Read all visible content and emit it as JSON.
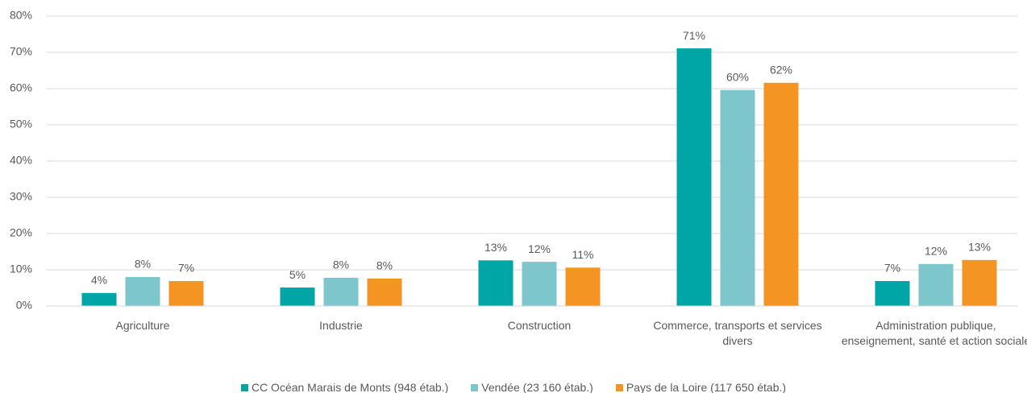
{
  "chart_data": {
    "type": "bar",
    "categories": [
      "Agriculture",
      "Industrie",
      "Construction",
      "Commerce, transports et services divers",
      "Administration publique, enseignement, santé et action sociale"
    ],
    "series": [
      {
        "name": "CC Océan Marais de Monts (948 étab.)",
        "color": "#00a6a6",
        "values": [
          3.6,
          5.1,
          12.6,
          71.1,
          6.9
        ],
        "value_labels": [
          "4%",
          "5%",
          "13%",
          "71%",
          "7%"
        ]
      },
      {
        "name": "Vendée (23 160 étab.)",
        "color": "#7cc6cc",
        "values": [
          8.0,
          7.8,
          12.2,
          59.6,
          11.6
        ],
        "value_labels": [
          "8%",
          "8%",
          "12%",
          "60%",
          "12%"
        ]
      },
      {
        "name": "Pays de la Loire (117 650 étab.)",
        "color": "#f39423",
        "values": [
          6.9,
          7.6,
          10.6,
          61.6,
          12.7
        ],
        "value_labels": [
          "7%",
          "8%",
          "11%",
          "62%",
          "13%"
        ]
      }
    ],
    "ylim": [
      0,
      80
    ],
    "yticks": [
      {
        "value": 0,
        "label": "0%"
      },
      {
        "value": 10,
        "label": "10%"
      },
      {
        "value": 20,
        "label": "20%"
      },
      {
        "value": 30,
        "label": "30%"
      },
      {
        "value": 40,
        "label": "40%"
      },
      {
        "value": 50,
        "label": "50%"
      },
      {
        "value": 60,
        "label": "60%"
      },
      {
        "value": 70,
        "label": "70%"
      },
      {
        "value": 80,
        "label": "80%"
      }
    ],
    "grid": true,
    "legend": "bottom"
  }
}
